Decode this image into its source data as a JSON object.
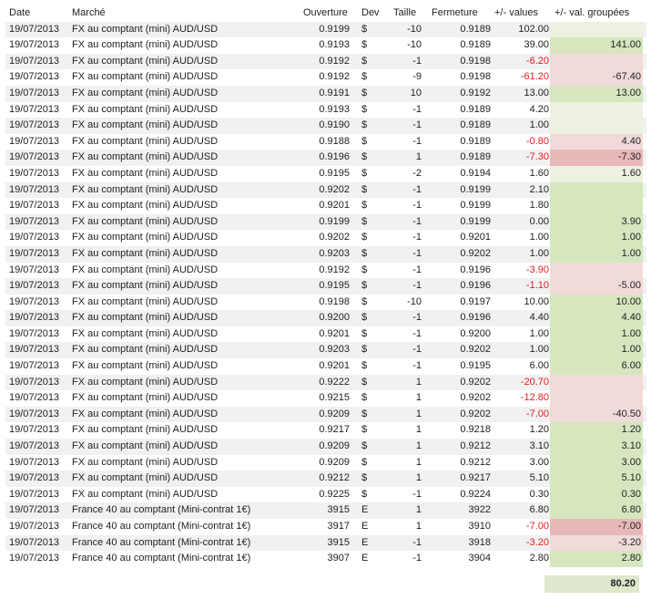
{
  "headers": {
    "date": "Date",
    "market": "Marché",
    "open": "Ouverture",
    "dev": "Dev",
    "size": "Taille",
    "close": "Fermeture",
    "pv": "+/- values",
    "grouped": "+/- val. groupées"
  },
  "colors": {
    "green": "#d6e6bf",
    "light_green": "#ecf1e2",
    "red": "#e8b9b9",
    "light_red": "#f1dada",
    "negative_text": "#e02020"
  },
  "rows": [
    {
      "date": "19/07/2013",
      "market": "FX au comptant  (mini) AUD/USD",
      "open": "0.9199",
      "dev": "$",
      "size": "-10",
      "close": "0.9189",
      "pv": "102.00",
      "grouped": "",
      "bg": "lg"
    },
    {
      "date": "19/07/2013",
      "market": "FX au comptant  (mini) AUD/USD",
      "open": "0.9193",
      "dev": "$",
      "size": "-10",
      "close": "0.9189",
      "pv": "39.00",
      "grouped": "141.00",
      "bg": "g"
    },
    {
      "date": "19/07/2013",
      "market": "FX au comptant  (mini) AUD/USD",
      "open": "0.9192",
      "dev": "$",
      "size": "-1",
      "close": "0.9198",
      "pv": "-6.20",
      "grouped": "",
      "bg": "lr"
    },
    {
      "date": "19/07/2013",
      "market": "FX au comptant  (mini) AUD/USD",
      "open": "0.9192",
      "dev": "$",
      "size": "-9",
      "close": "0.9198",
      "pv": "-61.20",
      "grouped": "-67.40",
      "bg": "lr"
    },
    {
      "date": "19/07/2013",
      "market": "FX au comptant  (mini) AUD/USD",
      "open": "0.9191",
      "dev": "$",
      "size": "10",
      "close": "0.9192",
      "pv": "13.00",
      "grouped": "13.00",
      "bg": "g"
    },
    {
      "date": "19/07/2013",
      "market": "FX au comptant  (mini) AUD/USD",
      "open": "0.9193",
      "dev": "$",
      "size": "-1",
      "close": "0.9189",
      "pv": "4.20",
      "grouped": "",
      "bg": "lg"
    },
    {
      "date": "19/07/2013",
      "market": "FX au comptant  (mini) AUD/USD",
      "open": "0.9190",
      "dev": "$",
      "size": "-1",
      "close": "0.9189",
      "pv": "1.00",
      "grouped": "",
      "bg": "lg"
    },
    {
      "date": "19/07/2013",
      "market": "FX au comptant  (mini) AUD/USD",
      "open": "0.9188",
      "dev": "$",
      "size": "-1",
      "close": "0.9189",
      "pv": "-0.80",
      "grouped": "4.40",
      "bg": "lr"
    },
    {
      "date": "19/07/2013",
      "market": "FX au comptant  (mini) AUD/USD",
      "open": "0.9196",
      "dev": "$",
      "size": "1",
      "close": "0.9189",
      "pv": "-7.30",
      "grouped": "-7.30",
      "bg": "r"
    },
    {
      "date": "19/07/2013",
      "market": "FX au comptant  (mini) AUD/USD",
      "open": "0.9195",
      "dev": "$",
      "size": "-2",
      "close": "0.9194",
      "pv": "1.60",
      "grouped": "1.60",
      "bg": "lg"
    },
    {
      "date": "19/07/2013",
      "market": "FX au comptant  (mini) AUD/USD",
      "open": "0.9202",
      "dev": "$",
      "size": "-1",
      "close": "0.9199",
      "pv": "2.10",
      "grouped": "",
      "bg": "g"
    },
    {
      "date": "19/07/2013",
      "market": "FX au comptant  (mini) AUD/USD",
      "open": "0.9201",
      "dev": "$",
      "size": "-1",
      "close": "0.9199",
      "pv": "1.80",
      "grouped": "",
      "bg": "g"
    },
    {
      "date": "19/07/2013",
      "market": "FX au comptant  (mini) AUD/USD",
      "open": "0.9199",
      "dev": "$",
      "size": "-1",
      "close": "0.9199",
      "pv": "0.00",
      "grouped": "3.90",
      "bg": "g"
    },
    {
      "date": "19/07/2013",
      "market": "FX au comptant  (mini) AUD/USD",
      "open": "0.9202",
      "dev": "$",
      "size": "-1",
      "close": "0.9201",
      "pv": "1.00",
      "grouped": "1.00",
      "bg": "g"
    },
    {
      "date": "19/07/2013",
      "market": "FX au comptant  (mini) AUD/USD",
      "open": "0.9203",
      "dev": "$",
      "size": "-1",
      "close": "0.9202",
      "pv": "1.00",
      "grouped": "1.00",
      "bg": "g"
    },
    {
      "date": "19/07/2013",
      "market": "FX au comptant  (mini) AUD/USD",
      "open": "0.9192",
      "dev": "$",
      "size": "-1",
      "close": "0.9196",
      "pv": "-3.90",
      "grouped": "",
      "bg": "lr"
    },
    {
      "date": "19/07/2013",
      "market": "FX au comptant  (mini) AUD/USD",
      "open": "0.9195",
      "dev": "$",
      "size": "-1",
      "close": "0.9196",
      "pv": "-1.10",
      "grouped": "-5.00",
      "bg": "lr"
    },
    {
      "date": "19/07/2013",
      "market": "FX au comptant  (mini) AUD/USD",
      "open": "0.9198",
      "dev": "$",
      "size": "-10",
      "close": "0.9197",
      "pv": "10.00",
      "grouped": "10.00",
      "bg": "g"
    },
    {
      "date": "19/07/2013",
      "market": "FX au comptant  (mini) AUD/USD",
      "open": "0.9200",
      "dev": "$",
      "size": "-1",
      "close": "0.9196",
      "pv": "4.40",
      "grouped": "4.40",
      "bg": "g"
    },
    {
      "date": "19/07/2013",
      "market": "FX au comptant  (mini) AUD/USD",
      "open": "0.9201",
      "dev": "$",
      "size": "-1",
      "close": "0.9200",
      "pv": "1.00",
      "grouped": "1.00",
      "bg": "g"
    },
    {
      "date": "19/07/2013",
      "market": "FX au comptant  (mini) AUD/USD",
      "open": "0.9203",
      "dev": "$",
      "size": "-1",
      "close": "0.9202",
      "pv": "1.00",
      "grouped": "1.00",
      "bg": "g"
    },
    {
      "date": "19/07/2013",
      "market": "FX au comptant  (mini) AUD/USD",
      "open": "0.9201",
      "dev": "$",
      "size": "-1",
      "close": "0.9195",
      "pv": "6.00",
      "grouped": "6.00",
      "bg": "g"
    },
    {
      "date": "19/07/2013",
      "market": "FX au comptant  (mini) AUD/USD",
      "open": "0.9222",
      "dev": "$",
      "size": "1",
      "close": "0.9202",
      "pv": "-20.70",
      "grouped": "",
      "bg": "lr"
    },
    {
      "date": "19/07/2013",
      "market": "FX au comptant  (mini) AUD/USD",
      "open": "0.9215",
      "dev": "$",
      "size": "1",
      "close": "0.9202",
      "pv": "-12.80",
      "grouped": "",
      "bg": "lr"
    },
    {
      "date": "19/07/2013",
      "market": "FX au comptant  (mini) AUD/USD",
      "open": "0.9209",
      "dev": "$",
      "size": "1",
      "close": "0.9202",
      "pv": "-7.00",
      "grouped": "-40.50",
      "bg": "lr"
    },
    {
      "date": "19/07/2013",
      "market": "FX au comptant  (mini) AUD/USD",
      "open": "0.9217",
      "dev": "$",
      "size": "1",
      "close": "0.9218",
      "pv": "1.20",
      "grouped": "1.20",
      "bg": "g"
    },
    {
      "date": "19/07/2013",
      "market": "FX au comptant  (mini) AUD/USD",
      "open": "0.9209",
      "dev": "$",
      "size": "1",
      "close": "0.9212",
      "pv": "3.10",
      "grouped": "3.10",
      "bg": "g"
    },
    {
      "date": "19/07/2013",
      "market": "FX au comptant  (mini) AUD/USD",
      "open": "0.9209",
      "dev": "$",
      "size": "1",
      "close": "0.9212",
      "pv": "3.00",
      "grouped": "3.00",
      "bg": "g"
    },
    {
      "date": "19/07/2013",
      "market": "FX au comptant  (mini) AUD/USD",
      "open": "0.9212",
      "dev": "$",
      "size": "1",
      "close": "0.9217",
      "pv": "5.10",
      "grouped": "5.10",
      "bg": "g"
    },
    {
      "date": "19/07/2013",
      "market": "FX au comptant  (mini) AUD/USD",
      "open": "0.9225",
      "dev": "$",
      "size": "-1",
      "close": "0.9224",
      "pv": "0.30",
      "grouped": "0.30",
      "bg": "g"
    },
    {
      "date": "19/07/2013",
      "market": "France 40 au comptant (Mini-contrat 1€)",
      "open": "3915",
      "dev": "E",
      "size": "1",
      "close": "3922",
      "pv": "6.80",
      "grouped": "6.80",
      "bg": "g"
    },
    {
      "date": "19/07/2013",
      "market": "France 40 au comptant (Mini-contrat 1€)",
      "open": "3917",
      "dev": "E",
      "size": "1",
      "close": "3910",
      "pv": "-7.00",
      "grouped": "-7.00",
      "bg": "r"
    },
    {
      "date": "19/07/2013",
      "market": "France 40 au comptant (Mini-contrat 1€)",
      "open": "3915",
      "dev": "E",
      "size": "-1",
      "close": "3918",
      "pv": "-3.20",
      "grouped": "-3.20",
      "bg": "lr"
    },
    {
      "date": "19/07/2013",
      "market": "France 40 au comptant (Mini-contrat 1€)",
      "open": "3907",
      "dev": "E",
      "size": "-1",
      "close": "3904",
      "pv": "2.80",
      "grouped": "2.80",
      "bg": "g"
    }
  ],
  "total": "80.20"
}
